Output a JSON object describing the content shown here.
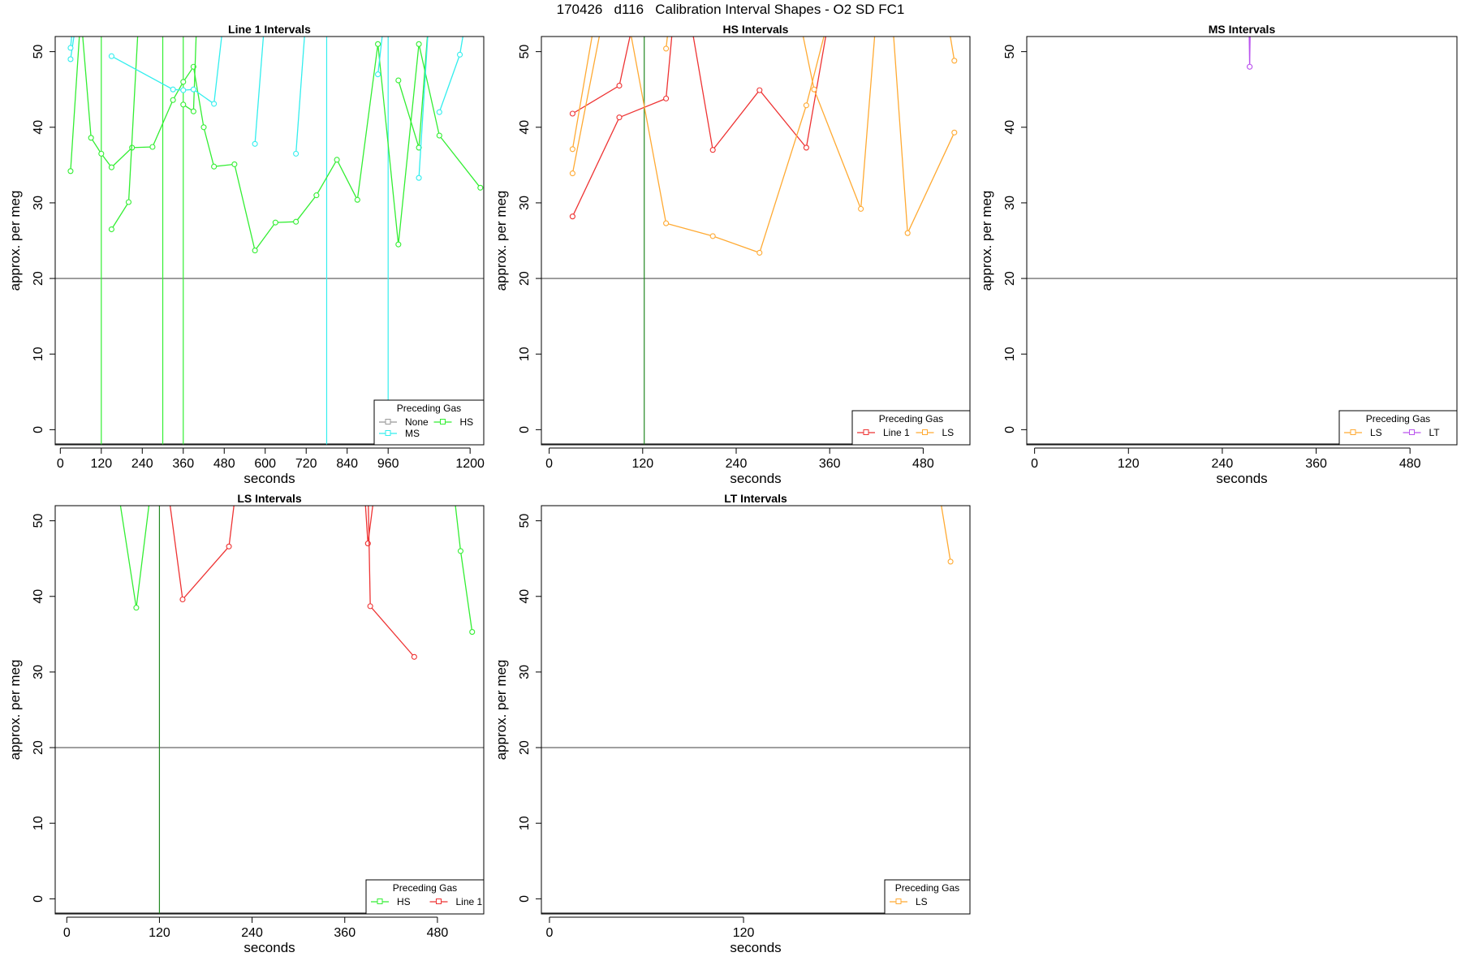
{
  "title": "170426   d116   Calibration Interval Shapes - O2 SD FC1",
  "colors": {
    "None": "#999999",
    "HS": "#33ee33",
    "MS": "#33eeee",
    "Line 1": "#ee3333",
    "LS": "#ffaa33",
    "LT": "#bb55ee",
    "ref_line": "#555555",
    "vline": "#228822"
  },
  "chart_data": [
    {
      "type": "line",
      "title": "Line 1 Intervals",
      "xlabel": "seconds",
      "ylabel": "approx. per meg",
      "xlim": [
        -15,
        1240
      ],
      "ylim": [
        -2,
        52
      ],
      "xticks": [
        "0",
        "120",
        "240",
        "360",
        "480",
        "600",
        "720",
        "840",
        "960",
        "1200"
      ],
      "xtick_values": [
        0,
        120,
        240,
        360,
        480,
        600,
        720,
        840,
        960,
        1200
      ],
      "yticks": [
        "0",
        "10",
        "20",
        "30",
        "40",
        "50"
      ],
      "ytick_values": [
        0,
        10,
        20,
        30,
        40,
        50
      ],
      "hline": 20,
      "vlines": [
        {
          "x": 120,
          "color": "HS"
        },
        {
          "x": 300,
          "color": "HS"
        },
        {
          "x": 360,
          "color": "HS"
        },
        {
          "x": 780,
          "color": "MS"
        },
        {
          "x": 960,
          "color": "MS"
        }
      ],
      "legend": {
        "title": "Preceding Gas",
        "position": "bottom-right",
        "entries": [
          "None",
          "HS",
          "MS"
        ]
      },
      "series": [
        {
          "name": "HS",
          "color": "HS",
          "segments": [
            [
              [
                30,
                34.2
              ],
              [
                60,
                55
              ],
              [
                90,
                38.6
              ],
              [
                120,
                36.5
              ],
              [
                150,
                34.7
              ],
              [
                210,
                37.3
              ],
              [
                270,
                37.4
              ],
              [
                330,
                43.6
              ],
              [
                360,
                46
              ],
              [
                390,
                48
              ],
              [
                420,
                40
              ],
              [
                450,
                34.8
              ],
              [
                510,
                35.1
              ],
              [
                570,
                23.7
              ],
              [
                630,
                27.4
              ],
              [
                690,
                27.5
              ],
              [
                750,
                31
              ],
              [
                810,
                35.7
              ],
              [
                870,
                30.4
              ],
              [
                930,
                51
              ],
              [
                990,
                24.5
              ],
              [
                1050,
                51
              ],
              [
                1110,
                38.9
              ],
              [
                1230,
                32
              ]
            ],
            [
              [
                150,
                26.5
              ],
              [
                200,
                30.1
              ],
              [
                230,
                55
              ]
            ],
            [
              [
                360,
                43
              ],
              [
                390,
                42.1
              ],
              [
                400,
                55
              ]
            ],
            [
              [
                990,
                46.2
              ],
              [
                1050,
                37.3
              ],
              [
                1080,
                55
              ]
            ]
          ]
        },
        {
          "name": "MS",
          "color": "MS",
          "segments": [
            [
              [
                30,
                49
              ],
              [
                50,
                55
              ]
            ],
            [
              [
                30,
                50.5
              ],
              [
                40,
                55
              ]
            ],
            [
              [
                150,
                49.4
              ],
              [
                330,
                45
              ],
              [
                360,
                44.9
              ],
              [
                390,
                45
              ],
              [
                450,
                43.1
              ],
              [
                480,
                55
              ]
            ],
            [
              [
                570,
                37.8
              ],
              [
                600,
                55
              ]
            ],
            [
              [
                690,
                36.5
              ],
              [
                720,
                55
              ]
            ],
            [
              [
                930,
                47
              ],
              [
                950,
                55
              ]
            ],
            [
              [
                1050,
                33.3
              ],
              [
                1080,
                55
              ]
            ],
            [
              [
                1110,
                42
              ],
              [
                1170,
                49.6
              ],
              [
                1190,
                55
              ]
            ]
          ]
        }
      ]
    },
    {
      "type": "line",
      "title": "HS Intervals",
      "xlabel": "seconds",
      "ylabel": "approx. per meg",
      "xlim": [
        -10,
        540
      ],
      "ylim": [
        -2,
        52
      ],
      "xticks": [
        "0",
        "120",
        "240",
        "360",
        "480"
      ],
      "xtick_values": [
        0,
        120,
        240,
        360,
        480
      ],
      "yticks": [
        "0",
        "10",
        "20",
        "30",
        "40",
        "50"
      ],
      "ytick_values": [
        0,
        10,
        20,
        30,
        40,
        50
      ],
      "hline": 20,
      "vlines": [
        {
          "x": 122,
          "color": "vline"
        }
      ],
      "legend": {
        "title": "Preceding Gas",
        "position": "bottom-right",
        "entries": [
          "Line 1",
          "LS"
        ]
      },
      "series": [
        {
          "name": "Line 1",
          "color": "Line 1",
          "segments": [
            [
              [
                30,
                41.8
              ],
              [
                90,
                45.5
              ],
              [
                110,
                55
              ]
            ],
            [
              [
                30,
                28.2
              ],
              [
                90,
                41.3
              ],
              [
                150,
                43.8
              ],
              [
                160,
                55
              ]
            ],
            [
              [
                180,
                55
              ],
              [
                210,
                37
              ],
              [
                270,
                44.9
              ],
              [
                330,
                37.3
              ],
              [
                360,
                55
              ]
            ]
          ]
        },
        {
          "name": "LS",
          "color": "LS",
          "segments": [
            [
              [
                30,
                37.1
              ],
              [
                60,
                55
              ]
            ],
            [
              [
                30,
                33.9
              ],
              [
                70,
                55
              ]
            ],
            [
              [
                100,
                55
              ],
              [
                150,
                27.3
              ],
              [
                210,
                25.6
              ],
              [
                270,
                23.4
              ],
              [
                330,
                42.9
              ],
              [
                360,
                55
              ]
            ],
            [
              [
                150,
                50.4
              ],
              [
                155,
                55
              ]
            ],
            [
              [
                320,
                55
              ],
              [
                340,
                45
              ],
              [
                400,
                29.2
              ],
              [
                420,
                55
              ]
            ],
            [
              [
                440,
                55
              ],
              [
                460,
                26
              ],
              [
                520,
                39.3
              ]
            ],
            [
              [
                510,
                55
              ],
              [
                520,
                48.8
              ]
            ]
          ]
        }
      ]
    },
    {
      "type": "line",
      "title": "MS Intervals",
      "xlabel": "seconds",
      "ylabel": "approx. per meg",
      "xlim": [
        -10,
        540
      ],
      "ylim": [
        -2,
        52
      ],
      "xticks": [
        "0",
        "120",
        "240",
        "360",
        "480"
      ],
      "xtick_values": [
        0,
        120,
        240,
        360,
        480
      ],
      "yticks": [
        "0",
        "10",
        "20",
        "30",
        "40",
        "50"
      ],
      "ytick_values": [
        0,
        10,
        20,
        30,
        40,
        50
      ],
      "hline": 20,
      "vlines": [],
      "legend": {
        "title": "Preceding Gas",
        "position": "bottom-right",
        "entries": [
          "LS",
          "LT"
        ]
      },
      "series": [
        {
          "name": "LT",
          "color": "LT",
          "segments": [
            [
              [
                275,
                48
              ],
              [
                274,
                55
              ]
            ],
            [
              [
                275,
                48
              ],
              [
                276,
                55
              ]
            ]
          ]
        }
      ]
    },
    {
      "type": "line",
      "title": "LS Intervals",
      "xlabel": "seconds",
      "ylabel": "approx. per meg",
      "xlim": [
        -15,
        540
      ],
      "ylim": [
        -2,
        52
      ],
      "xticks": [
        "0",
        "120",
        "240",
        "360",
        "480"
      ],
      "xtick_values": [
        0,
        120,
        240,
        360,
        480
      ],
      "yticks": [
        "0",
        "10",
        "20",
        "30",
        "40",
        "50"
      ],
      "ytick_values": [
        0,
        10,
        20,
        30,
        40,
        50
      ],
      "hline": 20,
      "vlines": [
        {
          "x": 120,
          "color": "vline"
        }
      ],
      "legend": {
        "title": "Preceding Gas",
        "position": "bottom-right",
        "entries": [
          "HS",
          "Line 1"
        ]
      },
      "series": [
        {
          "name": "HS",
          "color": "HS",
          "segments": [
            [
              [
                65,
                55
              ],
              [
                90,
                38.5
              ],
              [
                110,
                55
              ]
            ],
            [
              [
                500,
                55
              ],
              [
                510,
                46
              ],
              [
                525,
                35.3
              ]
            ]
          ]
        },
        {
          "name": "Line 1",
          "color": "Line 1",
          "segments": [
            [
              [
                130,
                55
              ],
              [
                150,
                39.6
              ],
              [
                210,
                46.6
              ],
              [
                220,
                55
              ]
            ],
            [
              [
                385,
                55
              ],
              [
                390,
                47
              ],
              [
                400,
                55
              ]
            ],
            [
              [
                390,
                55
              ],
              [
                393,
                38.7
              ],
              [
                450,
                32
              ]
            ]
          ]
        }
      ]
    },
    {
      "type": "line",
      "title": "LT Intervals",
      "xlabel": "seconds",
      "ylabel": "approx. per meg",
      "xlim": [
        -5,
        260
      ],
      "ylim": [
        -2,
        52
      ],
      "xticks": [
        "0",
        "120"
      ],
      "xtick_values": [
        0,
        120
      ],
      "yticks": [
        "0",
        "10",
        "20",
        "30",
        "40",
        "50"
      ],
      "ytick_values": [
        0,
        10,
        20,
        30,
        40,
        50
      ],
      "hline": 20,
      "vlines": [],
      "legend": {
        "title": "Preceding Gas",
        "position": "bottom-right",
        "entries": [
          "LS"
        ]
      },
      "series": [
        {
          "name": "LS",
          "color": "LS",
          "segments": [
            [
              [
                240,
                55
              ],
              [
                248,
                44.6
              ]
            ]
          ]
        }
      ]
    }
  ]
}
